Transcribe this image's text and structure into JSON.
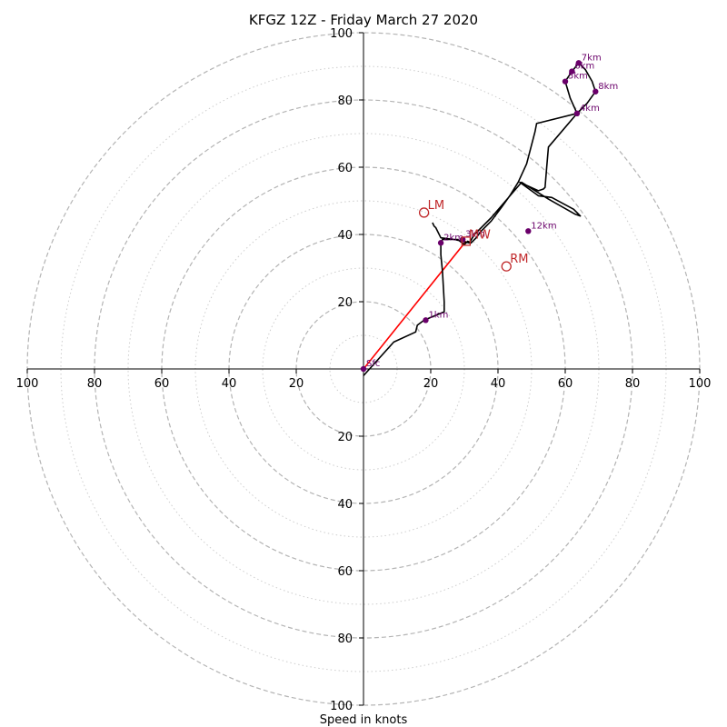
{
  "chart_data": {
    "type": "line",
    "subtype": "hodograph",
    "title": "KFGZ 12Z - Friday March 27 2020",
    "xlabel": "Speed in knots",
    "ylabel": "",
    "xlim": [
      -100,
      100
    ],
    "ylim": [
      -100,
      100
    ],
    "major_rings": [
      20,
      40,
      60,
      80,
      100
    ],
    "minor_rings": [
      10,
      30,
      50,
      70,
      90
    ],
    "ticks": [
      20,
      40,
      60,
      80,
      100
    ],
    "tick_labels": {
      "x_left": [
        "100",
        "80",
        "60",
        "40",
        "20"
      ],
      "x_right": [
        "20",
        "40",
        "60",
        "80",
        "100"
      ],
      "y_up": [
        "20",
        "40",
        "60",
        "80",
        "100"
      ],
      "y_down": [
        "20",
        "40",
        "60",
        "80",
        "100"
      ]
    },
    "colors": {
      "trace": "#000000",
      "height_marker": "#6a006a",
      "storm_motion": "#c0282a",
      "mean_wind_vector": "#ff0000",
      "major_ring": "#b4b4b4",
      "minor_ring": "#cdcdcd"
    },
    "trace": [
      [
        0,
        -2
      ],
      [
        9,
        8
      ],
      [
        15.5,
        11
      ],
      [
        16,
        13
      ],
      [
        18,
        14.5
      ],
      [
        24,
        17
      ],
      [
        24,
        20
      ],
      [
        23.5,
        29
      ],
      [
        23,
        34
      ],
      [
        23,
        37
      ],
      [
        23.5,
        38.5
      ],
      [
        28,
        38.5
      ],
      [
        30,
        37
      ],
      [
        31,
        38
      ],
      [
        32,
        37.5
      ],
      [
        33.5,
        39
      ],
      [
        35,
        41
      ],
      [
        38,
        44
      ],
      [
        41,
        48
      ],
      [
        43.5,
        51.5
      ],
      [
        46,
        55.5
      ],
      [
        48.5,
        61
      ],
      [
        51,
        70.5
      ],
      [
        51.5,
        73
      ],
      [
        63.5,
        76
      ],
      [
        66.5,
        79
      ],
      [
        69,
        82.5
      ],
      [
        68,
        85.5
      ],
      [
        66,
        89
      ],
      [
        64,
        91
      ],
      [
        62,
        88.5
      ],
      [
        60,
        85.5
      ],
      [
        61.5,
        80.5
      ],
      [
        63.5,
        76
      ],
      [
        55,
        66
      ],
      [
        54.5,
        60
      ],
      [
        54,
        54
      ],
      [
        53.5,
        53.5
      ],
      [
        52,
        53
      ],
      [
        46.5,
        55.5
      ],
      [
        52,
        51.5
      ],
      [
        56,
        51
      ],
      [
        62.5,
        47.5
      ],
      [
        64.5,
        45.5
      ],
      [
        63,
        46
      ],
      [
        55,
        50.5
      ],
      [
        47,
        55.5
      ],
      [
        38,
        45
      ],
      [
        33,
        40
      ],
      [
        31.5,
        37.5
      ],
      [
        27,
        38.5
      ],
      [
        23,
        39
      ],
      [
        21.5,
        42
      ],
      [
        21,
        42.5
      ],
      [
        20.5,
        43.5
      ]
    ],
    "height_markers": [
      {
        "label": "Sfc",
        "u": 0,
        "v": 0
      },
      {
        "label": "1km",
        "u": 18.5,
        "v": 14.5
      },
      {
        "label": "2km",
        "u": 23,
        "v": 37.5
      },
      {
        "label": "3km",
        "u": 29.5,
        "v": 38.5
      },
      {
        "label": "4km",
        "u": 63.5,
        "v": 76
      },
      {
        "label": "5km",
        "u": 60,
        "v": 85.5
      },
      {
        "label": "6km",
        "u": 62,
        "v": 88.5
      },
      {
        "label": "7km",
        "u": 64,
        "v": 91
      },
      {
        "label": "8km",
        "u": 69,
        "v": 82.5
      },
      {
        "label": "12km",
        "u": 49,
        "v": 41
      }
    ],
    "storm_motion": [
      {
        "label": "LM",
        "u": 18,
        "v": 46.5
      },
      {
        "label": "RM",
        "u": 42.5,
        "v": 30.5
      }
    ],
    "mean_wind": {
      "label": "MW",
      "u": 30.5,
      "v": 38
    },
    "mean_wind_vector": {
      "from": [
        0,
        0
      ],
      "to": [
        30.5,
        38
      ]
    }
  }
}
